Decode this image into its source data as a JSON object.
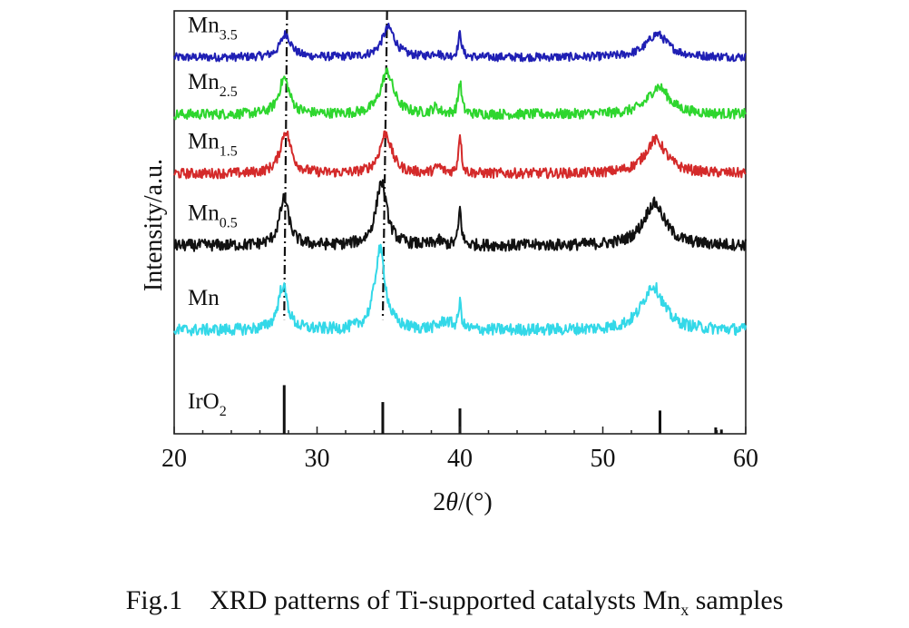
{
  "chart_data": {
    "type": "line",
    "xlabel_parts": {
      "pre": "2",
      "theta": "θ",
      "post": "/(°)"
    },
    "ylabel": "Intensity/a.u.",
    "xlim": [
      20,
      60
    ],
    "x_ticks": [
      20,
      30,
      40,
      50,
      60
    ],
    "grid": false,
    "legend": "inline labels at left of each trace",
    "series": [
      {
        "base": "Mn",
        "sub": "3.5",
        "color": "#1f1fb4",
        "offset": 0.89,
        "noise": 0.01,
        "peaks": [
          [
            27.8,
            0.055,
            0.45
          ],
          [
            35.0,
            0.07,
            0.55
          ],
          [
            40.0,
            0.055,
            0.14
          ],
          [
            38.3,
            0.01,
            0.3
          ],
          [
            53.8,
            0.055,
            0.9
          ]
        ]
      },
      {
        "base": "Mn",
        "sub": "2.5",
        "color": "#2ed62e",
        "offset": 0.755,
        "noise": 0.012,
        "peaks": [
          [
            27.7,
            0.085,
            0.45
          ],
          [
            34.9,
            0.1,
            0.55
          ],
          [
            40.0,
            0.075,
            0.14
          ],
          [
            38.3,
            0.015,
            0.3
          ],
          [
            53.9,
            0.065,
            0.9
          ]
        ]
      },
      {
        "base": "Mn",
        "sub": "1.5",
        "color": "#d42a2a",
        "offset": 0.615,
        "noise": 0.012,
        "peaks": [
          [
            27.8,
            0.1,
            0.45
          ],
          [
            34.8,
            0.095,
            0.5
          ],
          [
            40.0,
            0.095,
            0.12
          ],
          [
            38.5,
            0.015,
            0.3
          ],
          [
            53.7,
            0.08,
            0.9
          ]
        ]
      },
      {
        "base": "Mn",
        "sub": "0.5",
        "color": "#111111",
        "offset": 0.445,
        "noise": 0.014,
        "peaks": [
          [
            27.7,
            0.11,
            0.4
          ],
          [
            34.5,
            0.15,
            0.45
          ],
          [
            40.0,
            0.085,
            0.12
          ],
          [
            38.5,
            0.01,
            0.3
          ],
          [
            53.6,
            0.1,
            0.9
          ]
        ]
      },
      {
        "base": "Mn",
        "sub": "",
        "color": "#33d8e8",
        "offset": 0.245,
        "noise": 0.014,
        "peaks": [
          [
            27.6,
            0.105,
            0.4
          ],
          [
            34.4,
            0.19,
            0.45
          ],
          [
            40.0,
            0.06,
            0.12
          ],
          [
            39.0,
            0.02,
            0.5
          ],
          [
            53.5,
            0.105,
            0.9
          ]
        ]
      }
    ],
    "reference": {
      "base": "IrO",
      "sub": "2",
      "color": "#111111",
      "sticks": [
        [
          27.7,
          0.115
        ],
        [
          34.6,
          0.075
        ],
        [
          40.0,
          0.06
        ],
        [
          54.0,
          0.055
        ],
        [
          57.9,
          0.015
        ],
        [
          58.3,
          0.01
        ]
      ]
    },
    "guide_lines": [
      [
        27.7,
        27.9
      ],
      [
        34.6,
        34.9
      ]
    ]
  },
  "caption": {
    "prefix": "Fig.1    XRD patterns of Ti-supported catalysts Mn",
    "sub": "x",
    "suffix": " samples"
  }
}
